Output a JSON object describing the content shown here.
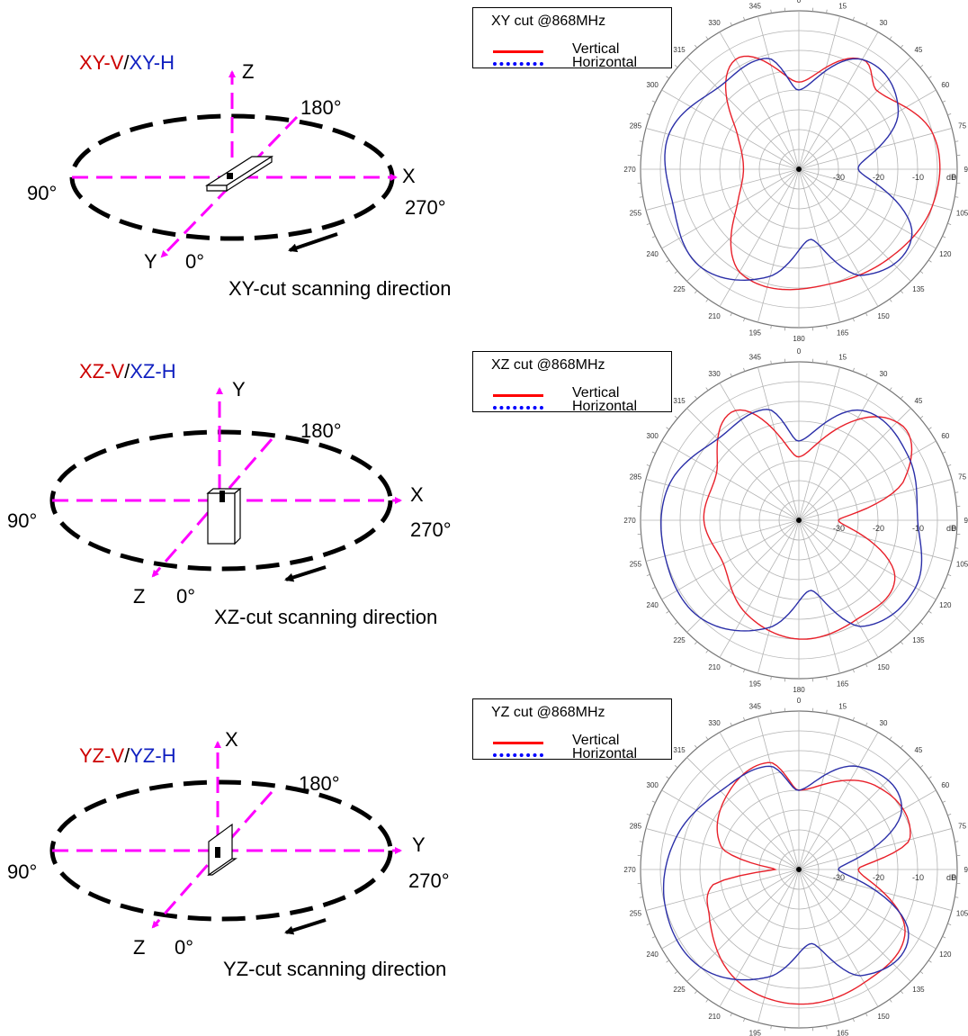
{
  "colors": {
    "vertical": "#e8202a",
    "horizontal": "#2b2fa8",
    "axis": "#ff00ff",
    "title_v": "#cc0000",
    "title_h": "#1020c0"
  },
  "panels": [
    {
      "title_v": "XY-V",
      "title_sep": "/",
      "title_h": "XY-H",
      "up_axis": "Z",
      "right_axis": "X",
      "front_axis": "Y",
      "deg_back": "180°",
      "deg_left": "90°",
      "deg_right": "270°",
      "deg_front": "0°",
      "caption": "XY-cut scanning direction",
      "legend": {
        "title": "XY cut @868MHz",
        "vertical": "Vertical",
        "horizontal": "Horizontal"
      }
    },
    {
      "title_v": "XZ-V",
      "title_sep": "/",
      "title_h": "XZ-H",
      "up_axis": "Y",
      "right_axis": "X",
      "front_axis": "Z",
      "deg_back": "180°",
      "deg_left": "90°",
      "deg_right": "270°",
      "deg_front": "0°",
      "caption": "XZ-cut scanning direction",
      "legend": {
        "title": "XZ cut @868MHz",
        "vertical": "Vertical",
        "horizontal": "Horizontal"
      }
    },
    {
      "title_v": "YZ-V",
      "title_sep": "/",
      "title_h": "YZ-H",
      "up_axis": "X",
      "right_axis": "Y",
      "front_axis": "Z",
      "deg_back": "180°",
      "deg_left": "90°",
      "deg_right": "270°",
      "deg_front": "0°",
      "caption": "YZ-cut scanning direction",
      "legend": {
        "title": "YZ cut @868MHz",
        "vertical": "Vertical",
        "horizontal": "Horizontal"
      }
    }
  ],
  "chart_data": [
    {
      "type": "polar",
      "title": "XY cut @868MHz",
      "unit": "dB",
      "radial_range": [
        -40,
        0
      ],
      "radial_ticks": [
        "-30",
        "-20",
        "-10",
        "0"
      ],
      "angle_ticks": [
        "0",
        "15",
        "30",
        "45",
        "60",
        "75",
        "90",
        "105",
        "120",
        "135",
        "150",
        "165",
        "180",
        "195",
        "210",
        "225",
        "240",
        "255",
        "270",
        "285",
        "300",
        "315",
        "330",
        "345"
      ],
      "series": [
        {
          "name": "Vertical",
          "angles": [
            0,
            30,
            45,
            75,
            105,
            135,
            165,
            210,
            240,
            270,
            300,
            330
          ],
          "values": [
            -18,
            -8,
            -12,
            -5,
            -5,
            -8,
            -10,
            -10,
            -22,
            -26,
            -22,
            -8
          ]
        },
        {
          "name": "Horizontal",
          "angles": [
            0,
            30,
            60,
            90,
            120,
            150,
            170,
            195,
            225,
            255,
            285,
            315,
            345
          ],
          "values": [
            -20,
            -8,
            -11,
            -25,
            -7,
            -9,
            -22,
            -12,
            -5,
            -7,
            -6,
            -11,
            -11
          ]
        }
      ]
    },
    {
      "type": "polar",
      "title": "XZ cut @868MHz",
      "unit": "dB",
      "radial_range": [
        -40,
        0
      ],
      "radial_ticks": [
        "-30",
        "-20",
        "-10",
        "0"
      ],
      "angle_ticks": [
        "0",
        "15",
        "30",
        "45",
        "60",
        "75",
        "90",
        "105",
        "120",
        "135",
        "150",
        "165",
        "180",
        "195",
        "210",
        "225",
        "240",
        "255",
        "270",
        "285",
        "300",
        "315",
        "330",
        "345"
      ],
      "series": [
        {
          "name": "Vertical",
          "angles": [
            0,
            45,
            70,
            90,
            120,
            150,
            180,
            210,
            240,
            270,
            300,
            330
          ],
          "values": [
            -24,
            -5,
            -12,
            -30,
            -12,
            -11,
            -10,
            -13,
            -18,
            -16,
            -16,
            -8
          ]
        },
        {
          "name": "Horizontal",
          "angles": [
            0,
            30,
            60,
            90,
            120,
            150,
            170,
            195,
            225,
            255,
            285,
            315,
            345
          ],
          "values": [
            -20,
            -8,
            -8,
            -10,
            -6,
            -9,
            -22,
            -12,
            -5,
            -5,
            -6,
            -11,
            -11
          ]
        }
      ]
    },
    {
      "type": "polar",
      "title": "YZ cut @868MHz",
      "unit": "dB",
      "radial_range": [
        -40,
        0
      ],
      "radial_ticks": [
        "-30",
        "-20",
        "-10",
        "0"
      ],
      "angle_ticks": [
        "0",
        "15",
        "30",
        "45",
        "60",
        "75",
        "90",
        "105",
        "120",
        "135",
        "150",
        "165",
        "180",
        "195",
        "210",
        "225",
        "240",
        "255",
        "270",
        "285",
        "300",
        "315",
        "330",
        "345"
      ],
      "series": [
        {
          "name": "Vertical",
          "angles": [
            0,
            45,
            75,
            90,
            120,
            150,
            180,
            210,
            240,
            260,
            270,
            285,
            315,
            345
          ],
          "values": [
            -20,
            -11,
            -11,
            -25,
            -9,
            -7,
            -6,
            -8,
            -14,
            -18,
            -34,
            -20,
            -14,
            -12
          ]
        },
        {
          "name": "Horizontal",
          "angles": [
            0,
            30,
            60,
            90,
            120,
            150,
            170,
            195,
            225,
            255,
            285,
            315,
            345
          ],
          "values": [
            -20,
            -10,
            -10,
            -30,
            -8,
            -9,
            -21,
            -12,
            -5,
            -5,
            -8,
            -12,
            -13
          ]
        }
      ]
    }
  ]
}
